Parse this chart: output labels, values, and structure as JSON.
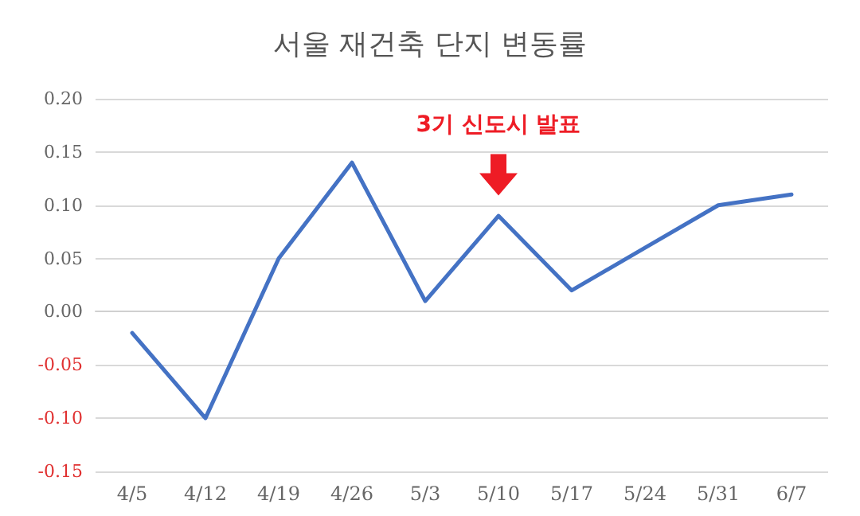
{
  "chart_data": {
    "type": "line",
    "title": "서울 재건축 단지 변동률",
    "categories": [
      "4/5",
      "4/12",
      "4/19",
      "4/26",
      "5/3",
      "5/10",
      "5/17",
      "5/24",
      "5/31",
      "6/7"
    ],
    "series": [
      {
        "color": "#4472c4",
        "values": [
          -0.02,
          -0.1,
          0.05,
          0.14,
          0.01,
          0.09,
          0.02,
          0.06,
          0.1,
          0.11
        ]
      }
    ],
    "ylim": [
      -0.15,
      0.2
    ],
    "yticks": [
      -0.15,
      {
        "value": -0.1,
        "label": "-0.10"
      },
      -0.05,
      {
        "value": 0,
        "label": "0.00"
      },
      0.05,
      {
        "value": 0.1,
        "label": "0.10"
      },
      0.15,
      {
        "value": 0.2,
        "label": "0.20"
      }
    ],
    "grid": "y",
    "marker": "none",
    "line_style": "solid",
    "annotations": [
      "3기 신도시 발표"
    ]
  }
}
